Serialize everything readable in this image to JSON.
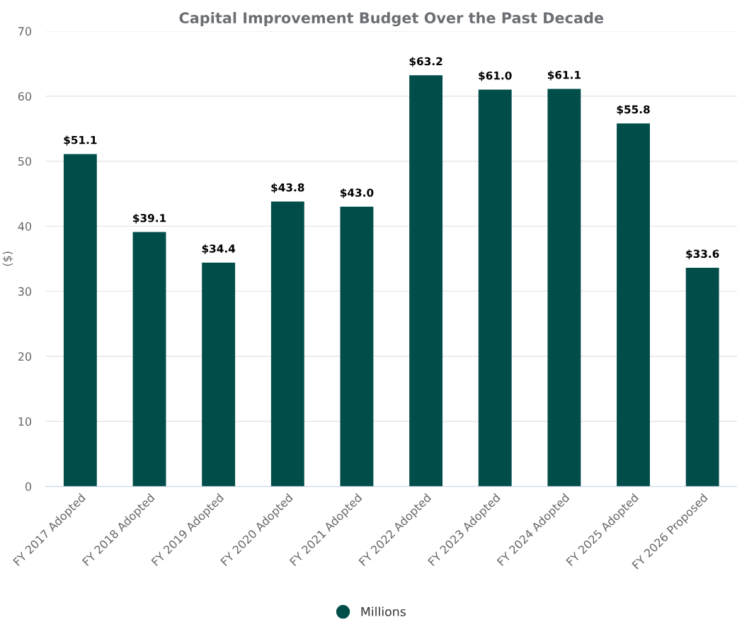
{
  "chart_data": {
    "type": "bar",
    "title": "Capital Improvement Budget Over the Past Decade",
    "ylabel": "($)",
    "categories": [
      "FY 2017 Adopted",
      "FY 2018 Adopted",
      "FY 2019 Adopted",
      "FY 2020 Adopted",
      "FY 2021 Adopted",
      "FY 2022 Adopted",
      "FY 2023 Adopted",
      "FY 2024 Adopted",
      "FY 2025 Adopted",
      "FY 2026 Proposed"
    ],
    "series": [
      {
        "name": "Millions",
        "color": "#004d4a",
        "values": [
          51.1,
          39.1,
          34.4,
          43.8,
          43.0,
          63.2,
          61.0,
          61.1,
          55.8,
          33.6
        ],
        "value_labels": [
          "$51.1",
          "$39.1",
          "$34.4",
          "$43.8",
          "$43.0",
          "$63.2",
          "$61.0",
          "$61.1",
          "$55.8",
          "$33.6"
        ]
      }
    ],
    "ylim": [
      0,
      70
    ],
    "yticks": [
      0,
      10,
      20,
      30,
      40,
      50,
      60,
      70
    ],
    "grid": "y",
    "legend": "bottom"
  }
}
